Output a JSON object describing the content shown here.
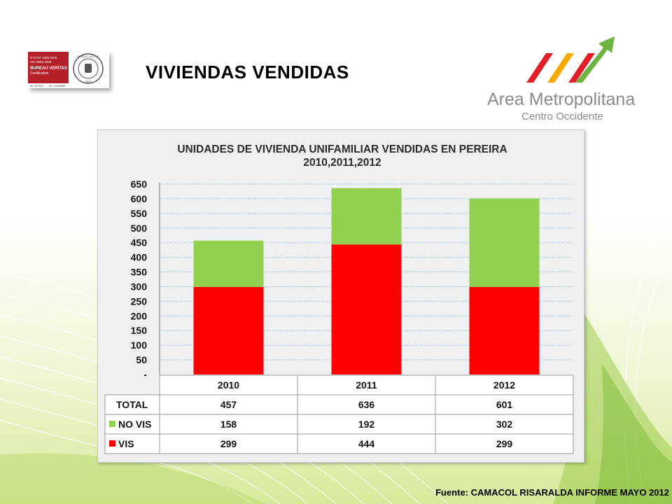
{
  "slide": {
    "title": "VIVIENDAS  VENDIDAS",
    "source": "Fuente: CAMACOL RISARALDA INFORME MAYO 2012"
  },
  "logos": {
    "bureau_veritas": {
      "line1": "NTCGP 1000:2009",
      "line2": "ISO 9001:2008",
      "name": "BUREAU VERITAS",
      "sub": "Certification",
      "cert1": "No. GP0323",
      "cert2": "No. CO234989",
      "seal_top": "BUREAU VERITAS",
      "seal_year": "1828"
    },
    "amco": {
      "name": "Area Metropolitana",
      "sub": "Centro Occidente"
    }
  },
  "colors": {
    "vis": "#ff0000",
    "no_vis": "#92d050",
    "grid": "#8fb4e3",
    "bv_red": "#b51f2a"
  },
  "chart_data": {
    "type": "bar",
    "stacked": true,
    "title": "UNIDADES DE VIVIENDA UNIFAMILIAR VENDIDAS EN PEREIRA",
    "subtitle": "2010,2011,2012",
    "categories": [
      "2010",
      "2011",
      "2012"
    ],
    "series": [
      {
        "name": "VIS",
        "values": [
          299,
          444,
          299
        ]
      },
      {
        "name": "NO VIS",
        "values": [
          158,
          192,
          302
        ]
      }
    ],
    "table": {
      "total_label": "TOTAL",
      "totals": [
        457,
        636,
        601
      ]
    },
    "y_ticks": [
      "-",
      "50",
      "100",
      "150",
      "200",
      "250",
      "300",
      "350",
      "400",
      "450",
      "500",
      "550",
      "600",
      "650"
    ],
    "ylim": [
      0,
      650
    ],
    "grid": true,
    "legend": "data-table"
  }
}
